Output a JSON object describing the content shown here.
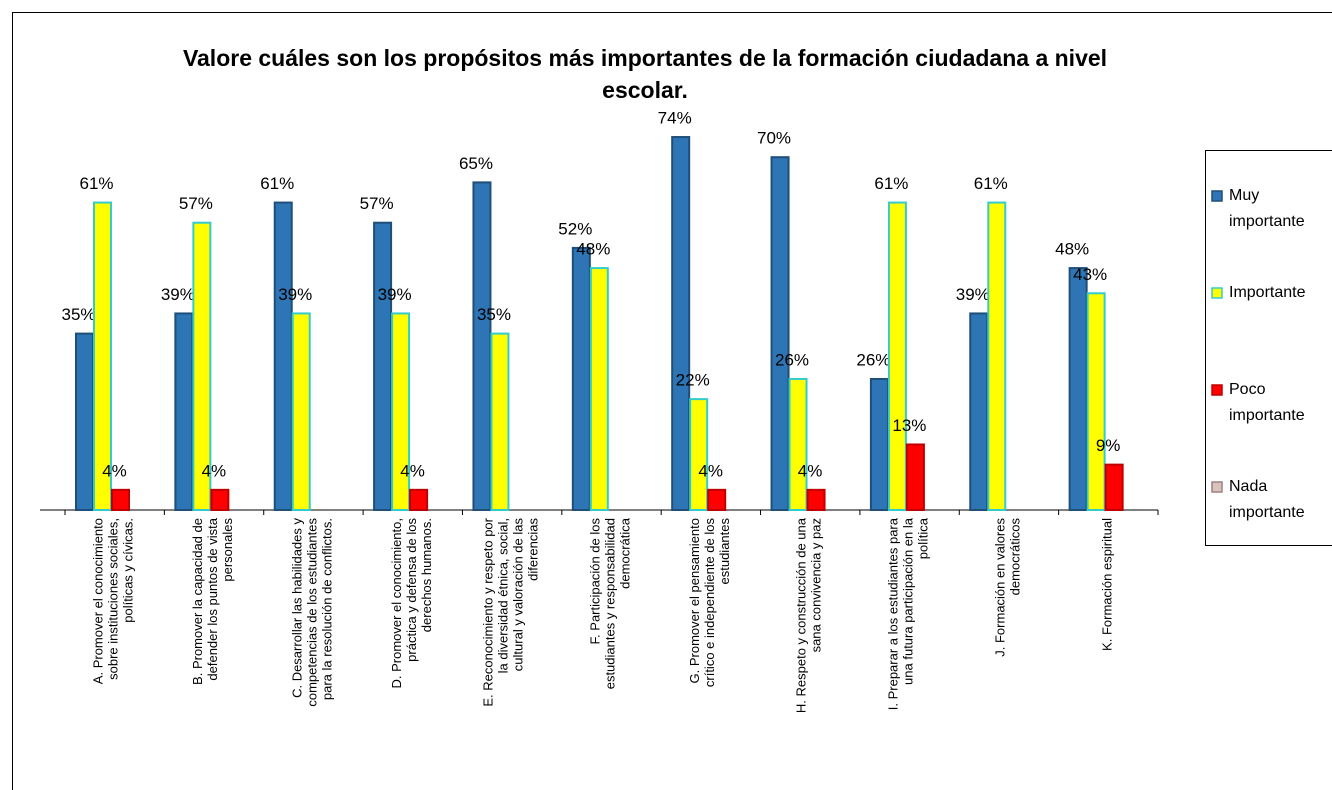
{
  "chart_data": {
    "type": "bar",
    "title": "Valore cuáles son los propósitos más importantes de la formación ciudadana a nivel escolar.",
    "categories": [
      "A. Promover el conocimiento sobre instituciones sociales, políticas y cívicas.",
      "B. Promover la capacidad de defender los puntos de vista personales",
      "C. Desarrollar las habilidades y competencias de los estudiantes para la resolución de conflictos.",
      "D. Promover el conocimiento, práctica y defensa de los derechos humanos.",
      "E. Reconocimiento y respeto por la diversidad étnica, social, cultural y valoración de las diferencias",
      "F. Participación de los estudiantes y responsabilidad democrática",
      "G. Promover el pensamiento crítico e independiente de los estudiantes",
      "H. Respeto y construcción de una sana convivencia y paz",
      "I. Preparar a los estudiantes para una futura participación en la política",
      "J. Formación en valores democráticos",
      "K. Formación espiritual"
    ],
    "series": [
      {
        "name": "Muy importante",
        "color": "#2e75b6",
        "values": [
          35,
          39,
          61,
          57,
          65,
          52,
          74,
          70,
          26,
          39,
          48
        ],
        "value_labels": [
          "35%",
          "39%",
          "61%",
          "57%",
          "65%",
          "52%",
          "74%",
          "70%",
          "26%",
          "39%",
          "48%"
        ]
      },
      {
        "name": "Importante",
        "color": "#ffff00",
        "values": [
          61,
          57,
          39,
          39,
          35,
          48,
          22,
          26,
          61,
          61,
          43
        ],
        "value_labels": [
          "61%",
          "57%",
          "39%",
          "39%",
          "35%",
          "48%",
          "22%",
          "26%",
          "61%",
          "61%",
          "43%"
        ]
      },
      {
        "name": "Poco importante",
        "color": "#ff0000",
        "values": [
          4,
          4,
          null,
          4,
          null,
          null,
          4,
          4,
          13,
          null,
          9
        ],
        "value_labels": [
          "4%",
          "4%",
          null,
          "4%",
          null,
          null,
          "4%",
          "4%",
          "13%",
          null,
          "9%"
        ]
      },
      {
        "name": "Nada importante",
        "color": "#d9c3bd",
        "values": [
          null,
          null,
          null,
          null,
          null,
          null,
          null,
          null,
          null,
          null,
          null
        ]
      }
    ],
    "ylim": [
      0,
      80
    ],
    "legend": "right"
  }
}
